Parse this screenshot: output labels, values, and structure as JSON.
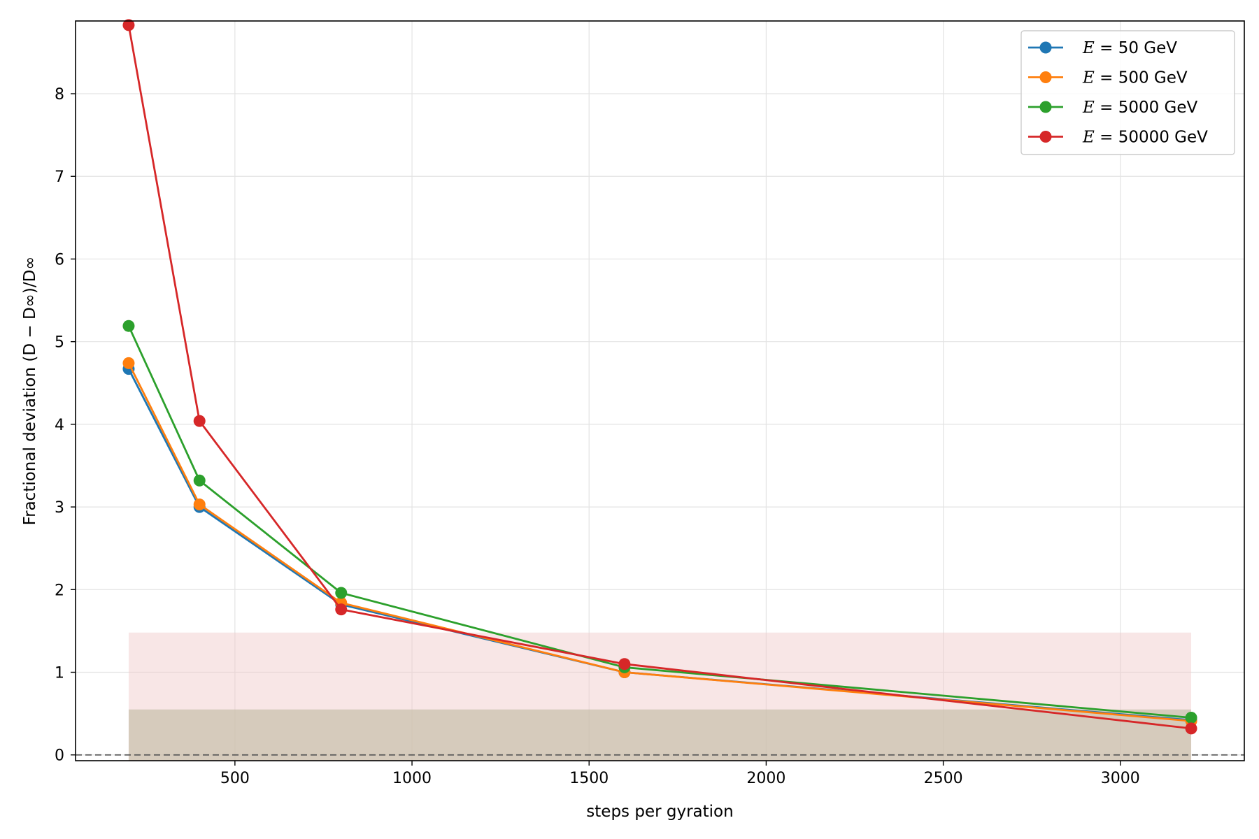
{
  "chart_data": {
    "type": "line",
    "xlabel": "steps per gyration",
    "ylabel": "Fractional deviation (D − D∞)/D∞",
    "xlim": [
      50,
      3350
    ],
    "ylim": [
      -0.07,
      8.88
    ],
    "x_ticks": [
      500,
      1000,
      1500,
      2000,
      2500,
      3000
    ],
    "y_ticks": [
      0,
      1,
      2,
      3,
      4,
      5,
      6,
      7,
      8
    ],
    "grid": true,
    "legend_position": "top-right",
    "reference_line": {
      "y": 0,
      "style": "dashed",
      "color": "#555555"
    },
    "bands": [
      {
        "x": [
          200,
          3200
        ],
        "y": [
          -0.07,
          1.48
        ],
        "color": "#f0c8c8",
        "opacity": 0.45
      },
      {
        "x": [
          200,
          3200
        ],
        "y": [
          -0.07,
          0.55
        ],
        "color": "#c8bfaa",
        "opacity": 0.7
      }
    ],
    "x": [
      200,
      400,
      800,
      1600,
      3200
    ],
    "series": [
      {
        "name": "E = 50 GeV",
        "legend_math": "E",
        "legend_rest": " = 50 GeV",
        "color": "#1f77b4",
        "values": [
          4.67,
          3.0,
          1.82,
          1.0,
          0.42
        ]
      },
      {
        "name": "E = 500 GeV",
        "legend_math": "E",
        "legend_rest": " = 500 GeV",
        "color": "#ff7f0e",
        "values": [
          4.74,
          3.03,
          1.84,
          1.0,
          0.41
        ]
      },
      {
        "name": "E = 5000 GeV",
        "legend_math": "E",
        "legend_rest": " = 5000 GeV",
        "color": "#2ca02c",
        "values": [
          5.19,
          3.32,
          1.96,
          1.06,
          0.45
        ]
      },
      {
        "name": "E = 50000 GeV",
        "legend_math": "E",
        "legend_rest": " = 50000 GeV",
        "color": "#d62728",
        "values": [
          8.83,
          4.04,
          1.76,
          1.1,
          0.32
        ]
      }
    ]
  }
}
